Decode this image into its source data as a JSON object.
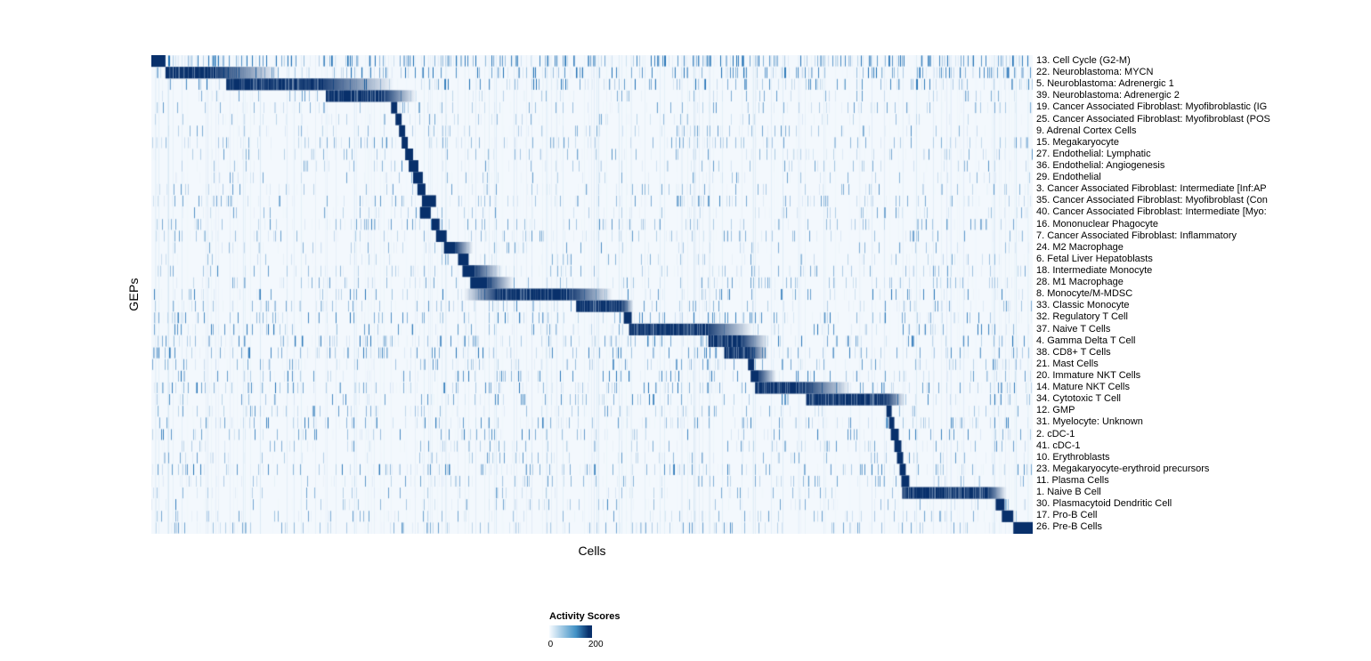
{
  "chart_data": {
    "type": "heatmap",
    "title": "",
    "xlabel": "Cells",
    "ylabel": "GEPs",
    "value_range": [
      0,
      200
    ],
    "colormap": {
      "name": "Blues",
      "low": "#f7fbff",
      "background": "#f3f8fd",
      "mid": "#4292c6",
      "high": "#08306b",
      "speckle": "#2171b5",
      "stripe": "#6baed6",
      "streak_light": "#deebf7"
    },
    "legend": {
      "title": "Activity Scores",
      "ticks": [
        "0",
        "200"
      ]
    },
    "rows": [
      {
        "label": "13. Cell Cycle (G2-M)",
        "block": [
          0.0,
          0.016
        ],
        "noise": 3
      },
      {
        "label": "22. Neuroblastoma: MYCN",
        "block": [
          0.016,
          0.075
        ],
        "tail": 0.07,
        "noise": 2
      },
      {
        "label": "5. Neuroblastoma: Adrenergic 1",
        "block": [
          0.085,
          0.195
        ],
        "tail": 0.08,
        "noise": 1.6
      },
      {
        "label": "39. Neuroblastoma: Adrenergic 2",
        "block": [
          0.198,
          0.265
        ],
        "tail": 0.035
      },
      {
        "label": "19. Cancer Associated Fibroblast: Myofibroblastic (IG",
        "block": [
          0.272,
          0.279
        ]
      },
      {
        "label": "25. Cancer Associated Fibroblast: Myofibroblast (POS",
        "block": [
          0.277,
          0.284
        ]
      },
      {
        "label": "9. Adrenal Cortex Cells",
        "block": [
          0.281,
          0.288
        ]
      },
      {
        "label": "15. Megakaryocyte",
        "block": [
          0.284,
          0.291
        ]
      },
      {
        "label": "27. Endothelial: Lymphatic",
        "block": [
          0.288,
          0.297
        ]
      },
      {
        "label": "36. Endothelial: Angiogenesis",
        "block": [
          0.292,
          0.303
        ]
      },
      {
        "label": "29. Endothelial",
        "block": [
          0.297,
          0.308
        ]
      },
      {
        "label": "3. Cancer Associated Fibroblast: Intermediate [Inf:AP",
        "block": [
          0.302,
          0.311
        ]
      },
      {
        "label": "35. Cancer Associated Fibroblast: Myofibroblast (Con",
        "block": [
          0.307,
          0.323
        ]
      },
      {
        "label": "40. Cancer Associated Fibroblast: Intermediate [Myo:",
        "block": [
          0.305,
          0.317
        ]
      },
      {
        "label": "16. Mononuclear Phagocyte",
        "block": [
          0.318,
          0.327
        ]
      },
      {
        "label": "7. Cancer Associated Fibroblast: Inflammatory",
        "block": [
          0.323,
          0.335
        ]
      },
      {
        "label": "24. M2 Macrophage",
        "block": [
          0.332,
          0.345
        ],
        "tail": 0.02
      },
      {
        "label": "6. Fetal Liver Hepatoblasts",
        "block": [
          0.348,
          0.36
        ]
      },
      {
        "label": "18. Intermediate Monocyte",
        "block": [
          0.353,
          0.367
        ],
        "tail": 0.03
      },
      {
        "label": "28. M1 Macrophage",
        "block": [
          0.362,
          0.381
        ],
        "tail": 0.03
      },
      {
        "label": "8. Monocyte/M-MDSC",
        "block": [
          0.39,
          0.478
        ],
        "tail": 0.045,
        "lead": 0.035,
        "noise": 1.4
      },
      {
        "label": "33. Classic Monocyte",
        "block": [
          0.482,
          0.535
        ],
        "tail": 0.012
      },
      {
        "label": "32. Regulatory T Cell",
        "block": [
          0.536,
          0.545
        ],
        "noise": 1.4
      },
      {
        "label": "37. Naive T Cells",
        "block": [
          0.542,
          0.632
        ],
        "tail": 0.05,
        "noise": 1.4
      },
      {
        "label": "4. Gamma Delta T Cell",
        "block": [
          0.632,
          0.67
        ],
        "tail": 0.03,
        "noise": 1.4
      },
      {
        "label": "38. CD8+ T Cells",
        "block": [
          0.65,
          0.68
        ],
        "tail": 0.02,
        "noise": 1.4
      },
      {
        "label": "21. Mast Cells",
        "block": [
          0.677,
          0.684
        ]
      },
      {
        "label": "20. Immature NKT Cells",
        "block": [
          0.68,
          0.689
        ],
        "tail": 0.02,
        "noise": 1.4
      },
      {
        "label": "14. Mature NKT Cells",
        "block": [
          0.685,
          0.743
        ],
        "tail": 0.05,
        "noise": 1.4
      },
      {
        "label": "34. Cytotoxic T Cell",
        "block": [
          0.743,
          0.835
        ],
        "tail": 0.02,
        "noise": 1.4
      },
      {
        "label": "12. GMP",
        "block": [
          0.834,
          0.84
        ]
      },
      {
        "label": "31. Myelocyte: Unknown",
        "block": [
          0.837,
          0.843
        ],
        "noise": 1.3
      },
      {
        "label": "2. cDC-1",
        "block": [
          0.839,
          0.848
        ],
        "noise": 1.3
      },
      {
        "label": "41. cDC-1",
        "block": [
          0.843,
          0.851
        ]
      },
      {
        "label": "10. Erythroblasts",
        "block": [
          0.846,
          0.853
        ]
      },
      {
        "label": "23. Megakaryocyte-erythroid precursors",
        "block": [
          0.849,
          0.856
        ],
        "noise": 1.3
      },
      {
        "label": "11. Plasma Cells",
        "block": [
          0.851,
          0.86
        ]
      },
      {
        "label": "1. Naive B Cell",
        "block": [
          0.852,
          0.95
        ],
        "tail": 0.02
      },
      {
        "label": "30. Plasmacytoid Dendritic Cell",
        "block": [
          0.958,
          0.968
        ]
      },
      {
        "label": "17. Pro-B Cell",
        "block": [
          0.965,
          0.978
        ]
      },
      {
        "label": "26. Pre-B Cells",
        "block": [
          0.978,
          1.0
        ]
      }
    ]
  }
}
